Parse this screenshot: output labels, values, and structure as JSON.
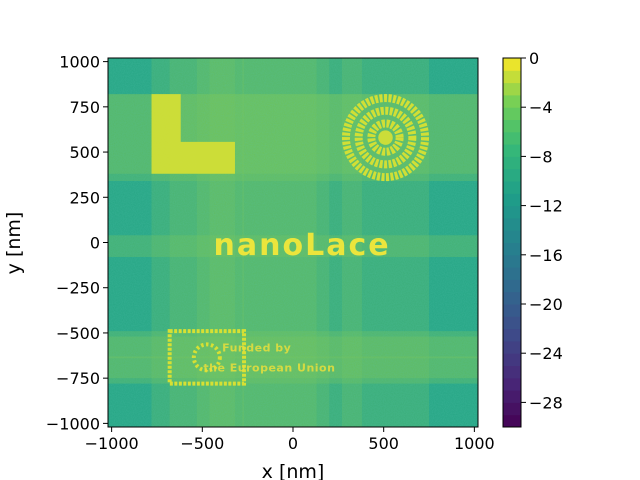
{
  "chart_data": {
    "type": "heatmap",
    "title": "",
    "xlabel": "x [nm]",
    "ylabel": "y [nm]",
    "xlim": [
      -1020,
      1020
    ],
    "ylim": [
      -1020,
      1020
    ],
    "x_ticks": [
      -1000,
      -500,
      0,
      500,
      1000
    ],
    "y_ticks": [
      -1000,
      -750,
      -500,
      -250,
      0,
      250,
      500,
      750,
      1000
    ],
    "x_tick_labels": [
      "−1000",
      "−500",
      "0",
      "500",
      "1000"
    ],
    "y_tick_labels": [
      "−1000",
      "−750",
      "−500",
      "−250",
      "0",
      "250",
      "500",
      "750",
      "1000"
    ],
    "colorbar": {
      "colormap": "viridis",
      "range": [
        -30,
        0
      ],
      "ticks": [
        0,
        -4,
        -8,
        -12,
        -16,
        -20,
        -24,
        -28
      ],
      "tick_labels": [
        "0",
        "−4",
        "−8",
        "−12",
        "−16",
        "−20",
        "−24",
        "−28"
      ],
      "levels": 30
    },
    "background_level": -10,
    "feature_level": -1,
    "features": [
      {
        "shape": "L-block",
        "x_range": [
          -780,
          -320
        ],
        "y_range": [
          380,
          820
        ],
        "level": -2
      },
      {
        "shape": "concentric-circles",
        "center": [
          510,
          580
        ],
        "radii": [
          240,
          170,
          100,
          40
        ],
        "level": -2
      },
      {
        "shape": "text",
        "text": "nanoLace",
        "center": [
          50,
          -20
        ],
        "level": -1
      },
      {
        "shape": "flag-rectangle",
        "x_range": [
          -680,
          -270
        ],
        "y_range": [
          -780,
          -490
        ],
        "level": -2
      },
      {
        "shape": "text",
        "text": "Funded by",
        "center": [
          -200,
          -580
        ],
        "level": -2
      },
      {
        "shape": "text",
        "text": "the European Union",
        "center": [
          -130,
          -690
        ],
        "level": -2
      }
    ]
  },
  "colors": {
    "background": "#2a9f8a",
    "feature": "#f0e442",
    "streak": "#7cc653"
  }
}
